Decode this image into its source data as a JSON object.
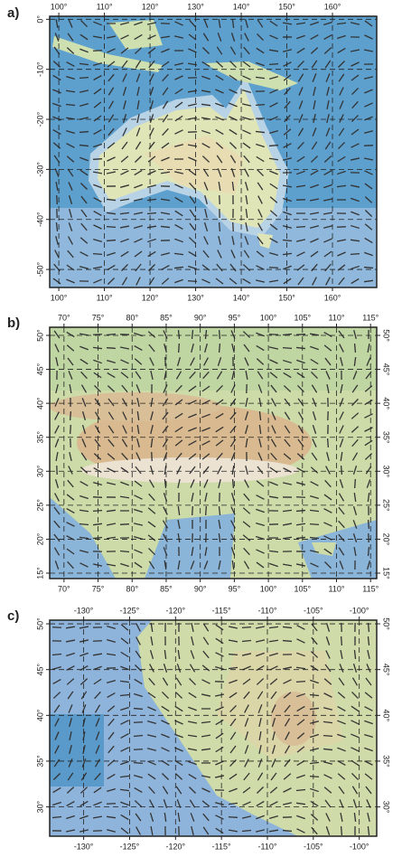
{
  "panels": [
    {
      "label": "a)",
      "xlim": [
        98.0,
        169.7
      ],
      "ylim": [
        -53.6,
        0.6
      ],
      "xticks": [
        {
          "value": 100,
          "label": "100°"
        },
        {
          "value": 110,
          "label": "110°"
        },
        {
          "value": 120,
          "label": "120°"
        },
        {
          "value": 130,
          "label": "130°"
        },
        {
          "value": 140,
          "label": "140°"
        },
        {
          "value": 150,
          "label": "150°"
        },
        {
          "value": 160,
          "label": "160°"
        }
      ],
      "yticks": [
        {
          "value": 0,
          "label": "0°"
        },
        {
          "value": -10,
          "label": "-10°"
        },
        {
          "value": -20,
          "label": "-20°"
        },
        {
          "value": -30,
          "label": "-30°"
        },
        {
          "value": -40,
          "label": "-40°"
        },
        {
          "value": -50,
          "label": "-50°"
        }
      ],
      "right_labels": false
    },
    {
      "label": "b)",
      "xlim": [
        67.9,
        115.9
      ],
      "ylim": [
        14.2,
        51.2
      ],
      "xticks": [
        {
          "value": 70,
          "label": "70°"
        },
        {
          "value": 75,
          "label": "75°"
        },
        {
          "value": 80,
          "label": "80°"
        },
        {
          "value": 85,
          "label": "85°"
        },
        {
          "value": 90,
          "label": "90°"
        },
        {
          "value": 95,
          "label": "95°"
        },
        {
          "value": 100,
          "label": "100°"
        },
        {
          "value": 105,
          "label": "105°"
        },
        {
          "value": 110,
          "label": "110°"
        },
        {
          "value": 115,
          "label": "115°"
        }
      ],
      "yticks": [
        {
          "value": 15,
          "label": "15°"
        },
        {
          "value": 20,
          "label": "20°"
        },
        {
          "value": 25,
          "label": "25°"
        },
        {
          "value": 30,
          "label": "30°"
        },
        {
          "value": 35,
          "label": "35°"
        },
        {
          "value": 40,
          "label": "40°"
        },
        {
          "value": 45,
          "label": "45°"
        },
        {
          "value": 50,
          "label": "50°"
        }
      ],
      "right_labels": true
    },
    {
      "label": "c)",
      "xlim": [
        -133.7,
        -98.1
      ],
      "ylim": [
        26.8,
        50.4
      ],
      "xticks": [
        {
          "value": -130,
          "label": "-130°"
        },
        {
          "value": -125,
          "label": "-125°"
        },
        {
          "value": -120,
          "label": "-120°"
        },
        {
          "value": -115,
          "label": "-115°"
        },
        {
          "value": -110,
          "label": "-110°"
        },
        {
          "value": -105,
          "label": "-105°"
        },
        {
          "value": -100,
          "label": "-100°"
        }
      ],
      "yticks": [
        {
          "value": 30,
          "label": "30°"
        },
        {
          "value": 35,
          "label": "35°"
        },
        {
          "value": 40,
          "label": "40°"
        },
        {
          "value": 45,
          "label": "45°"
        },
        {
          "value": 50,
          "label": "50°"
        }
      ],
      "right_labels": true
    }
  ]
}
